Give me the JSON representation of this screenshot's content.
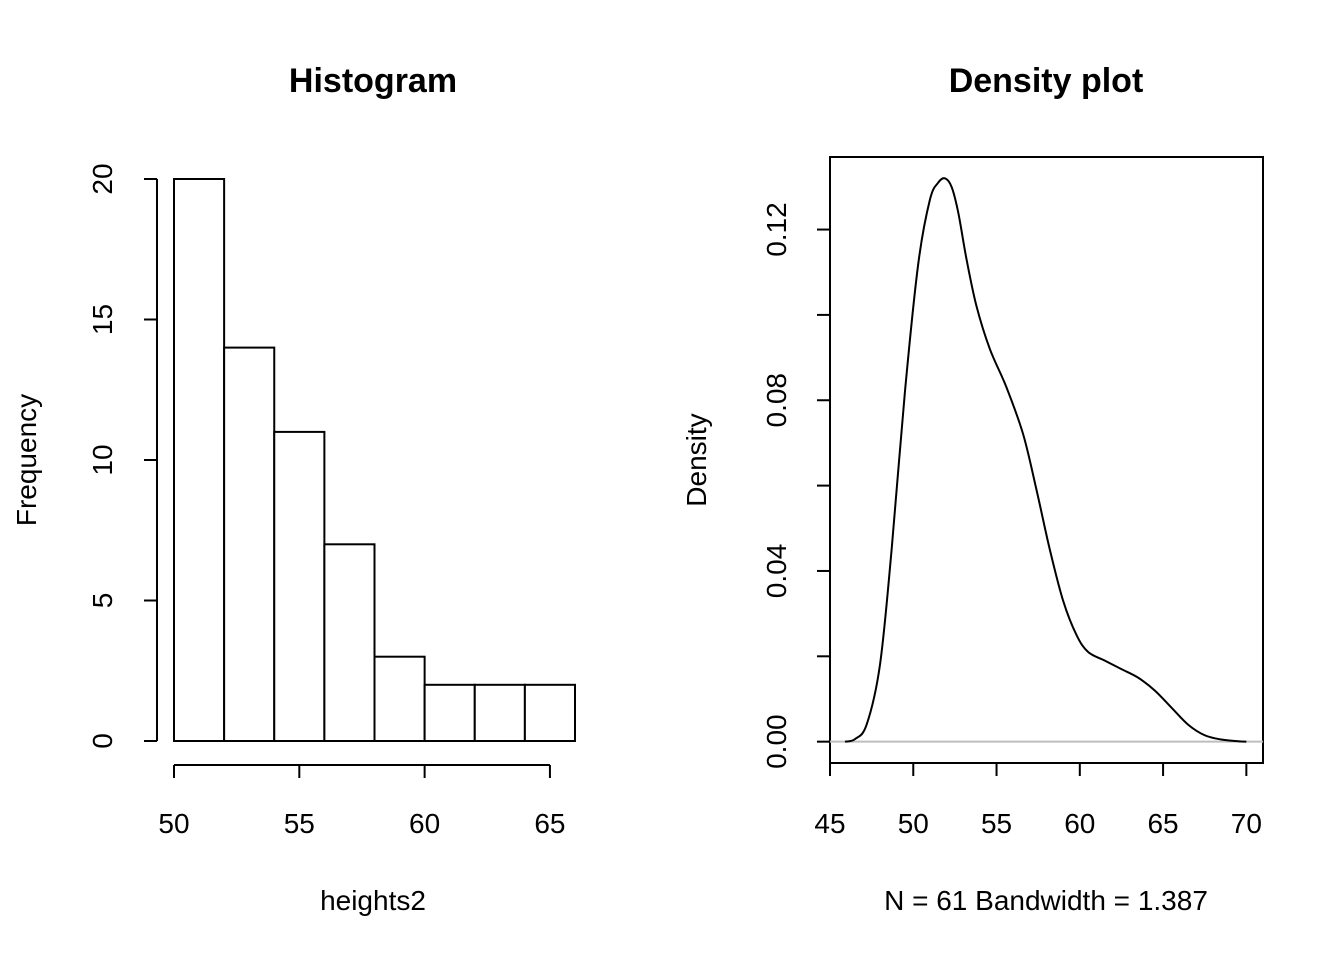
{
  "chart_data": [
    {
      "type": "bar",
      "title": "Histogram",
      "xlabel": "heights2",
      "ylabel": "Frequency",
      "bin_edges": [
        50,
        52,
        54,
        56,
        58,
        60,
        62,
        64,
        66
      ],
      "values": [
        20,
        14,
        11,
        7,
        3,
        2,
        2,
        2
      ],
      "xlim": [
        50,
        66
      ],
      "ylim": [
        0,
        20
      ],
      "x_ticks": [
        50,
        55,
        60,
        65
      ],
      "y_ticks": [
        0,
        5,
        10,
        15,
        20
      ],
      "x_tick_labels": [
        "50",
        "55",
        "60",
        "65"
      ],
      "y_tick_labels": [
        "0",
        "5",
        "10",
        "15",
        "20"
      ]
    },
    {
      "type": "line",
      "title": "Density plot",
      "xlabel": "N = 61   Bandwidth = 1.387",
      "ylabel": "Density",
      "x": [
        45.9,
        46.5,
        47.2,
        48.0,
        48.7,
        49.5,
        50.3,
        51.0,
        51.5,
        51.9,
        52.3,
        52.7,
        53.2,
        53.8,
        54.6,
        55.6,
        56.6,
        57.4,
        58.2,
        59.0,
        59.8,
        60.5,
        61.5,
        62.5,
        63.5,
        64.5,
        65.5,
        66.5,
        67.5,
        68.5,
        69.5,
        70.0
      ],
      "y": [
        0.0,
        0.0006,
        0.004,
        0.018,
        0.045,
        0.082,
        0.112,
        0.127,
        0.131,
        0.132,
        0.13,
        0.124,
        0.113,
        0.102,
        0.092,
        0.083,
        0.072,
        0.059,
        0.045,
        0.033,
        0.025,
        0.021,
        0.019,
        0.017,
        0.015,
        0.012,
        0.008,
        0.004,
        0.0015,
        0.0005,
        0.0001,
        0.0
      ],
      "xlim": [
        45,
        71
      ],
      "ylim": [
        -0.005,
        0.137
      ],
      "x_ticks": [
        45,
        50,
        55,
        60,
        65,
        70
      ],
      "y_ticks": [
        0.0,
        0.02,
        0.04,
        0.06,
        0.08,
        0.1,
        0.12
      ],
      "x_tick_labels": [
        "45",
        "50",
        "55",
        "60",
        "65",
        "70"
      ],
      "y_tick_labels": [
        "0.00",
        "",
        "0.04",
        "",
        "0.08",
        "",
        "0.12"
      ]
    }
  ]
}
